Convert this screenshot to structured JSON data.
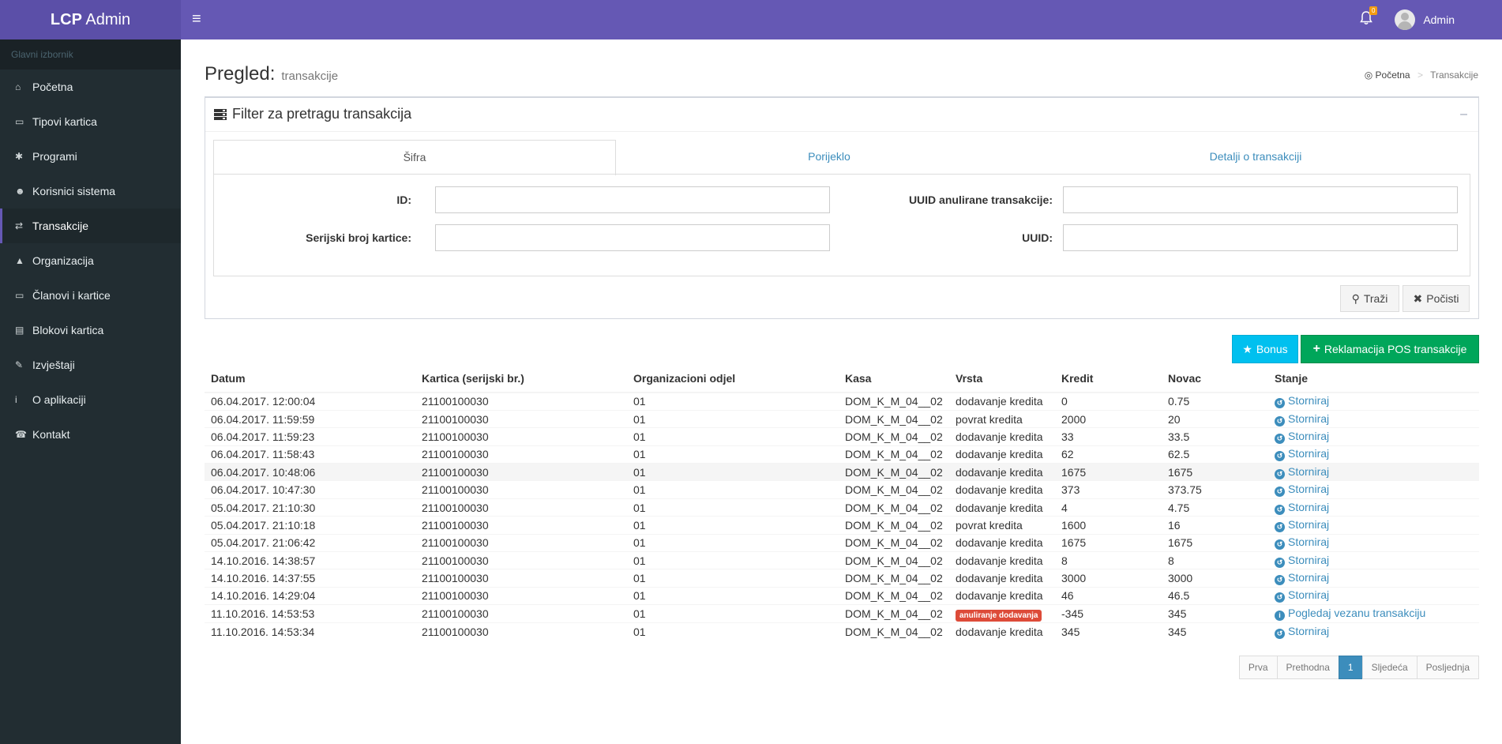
{
  "app": {
    "logo_bold": "LCP",
    "logo_rest": "Admin"
  },
  "header": {
    "menu_icon": "hamburger-icon",
    "notification_count": "0",
    "user_name": "Admin"
  },
  "sidebar": {
    "heading": "Glavni izbornik",
    "items": [
      {
        "label": "Početna",
        "icon": "home-icon"
      },
      {
        "label": "Tipovi kartica",
        "icon": "credit-card-icon"
      },
      {
        "label": "Programi",
        "icon": "asterisk-icon"
      },
      {
        "label": "Korisnici sistema",
        "icon": "user-icon"
      },
      {
        "label": "Transakcije",
        "icon": "exchange-icon",
        "active": true
      },
      {
        "label": "Organizacija",
        "icon": "tree-icon"
      },
      {
        "label": "Članovi i kartice",
        "icon": "credit-card-icon"
      },
      {
        "label": "Blokovi kartica",
        "icon": "book-icon"
      },
      {
        "label": "Izvještaji",
        "icon": "edit-icon"
      },
      {
        "label": "O aplikaciji",
        "icon": "info-icon"
      },
      {
        "label": "Kontakt",
        "icon": "phone-icon"
      }
    ]
  },
  "page": {
    "title": "Pregled:",
    "subtitle": "transakcije",
    "breadcrumb": {
      "home": "Početna",
      "current": "Transakcije"
    }
  },
  "filter": {
    "title": "Filter za pretragu transakcija",
    "tabs": [
      "Šifra",
      "Porijeklo",
      "Detalji o transakciji"
    ],
    "fields": {
      "id_label": "ID:",
      "id_value": "",
      "uuid_cancel_label": "UUID anulirane transakcije:",
      "uuid_cancel_value": "",
      "serial_label": "Serijski broj kartice:",
      "serial_value": "",
      "uuid_label": "UUID:",
      "uuid_value": ""
    },
    "search_label": "Traži",
    "clear_label": "Počisti"
  },
  "actions": {
    "bonus_label": "Bonus",
    "reklamacija_label": "Reklamacija POS transakcije"
  },
  "table": {
    "headers": [
      "Datum",
      "Kartica (serijski br.)",
      "Organizacioni odjel",
      "Kasa",
      "Vrsta",
      "Kredit",
      "Novac",
      "Stanje"
    ],
    "rows": [
      [
        "06.04.2017. 12:00:04",
        "21100100030",
        "01",
        "DOM_K_M_04__02",
        "dodavanje kredita",
        "0",
        "0.75",
        "Storniraj"
      ],
      [
        "06.04.2017. 11:59:59",
        "21100100030",
        "01",
        "DOM_K_M_04__02",
        "povrat kredita",
        "2000",
        "20",
        "Storniraj"
      ],
      [
        "06.04.2017. 11:59:23",
        "21100100030",
        "01",
        "DOM_K_M_04__02",
        "dodavanje kredita",
        "33",
        "33.5",
        "Storniraj"
      ],
      [
        "06.04.2017. 11:58:43",
        "21100100030",
        "01",
        "DOM_K_M_04__02",
        "dodavanje kredita",
        "62",
        "62.5",
        "Storniraj"
      ],
      [
        "06.04.2017. 10:48:06",
        "21100100030",
        "01",
        "DOM_K_M_04__02",
        "dodavanje kredita",
        "1675",
        "1675",
        "Storniraj"
      ],
      [
        "06.04.2017. 10:47:30",
        "21100100030",
        "01",
        "DOM_K_M_04__02",
        "dodavanje kredita",
        "373",
        "373.75",
        "Storniraj"
      ],
      [
        "05.04.2017. 21:10:30",
        "21100100030",
        "01",
        "DOM_K_M_04__02",
        "dodavanje kredita",
        "4",
        "4.75",
        "Storniraj"
      ],
      [
        "05.04.2017. 21:10:18",
        "21100100030",
        "01",
        "DOM_K_M_04__02",
        "povrat kredita",
        "1600",
        "16",
        "Storniraj"
      ],
      [
        "05.04.2017. 21:06:42",
        "21100100030",
        "01",
        "DOM_K_M_04__02",
        "dodavanje kredita",
        "1675",
        "1675",
        "Storniraj"
      ],
      [
        "14.10.2016. 14:38:57",
        "21100100030",
        "01",
        "DOM_K_M_04__02",
        "dodavanje kredita",
        "8",
        "8",
        "Storniraj"
      ],
      [
        "14.10.2016. 14:37:55",
        "21100100030",
        "01",
        "DOM_K_M_04__02",
        "dodavanje kredita",
        "3000",
        "3000",
        "Storniraj"
      ],
      [
        "14.10.2016. 14:29:04",
        "21100100030",
        "01",
        "DOM_K_M_04__02",
        "dodavanje kredita",
        "46",
        "46.5",
        "Storniraj"
      ],
      [
        "11.10.2016. 14:53:53",
        "21100100030",
        "01",
        "DOM_K_M_04__02",
        "anuliranje dodavanja",
        "-345",
        "345",
        "Pogledaj vezanu transakciju"
      ],
      [
        "11.10.2016. 14:53:34",
        "21100100030",
        "01",
        "DOM_K_M_04__02",
        "dodavanje kredita",
        "345",
        "345",
        "Storniraj"
      ]
    ],
    "highlighted_row": 4,
    "badge_row": 12
  },
  "pagination": [
    "Prva",
    "Prethodna",
    "1",
    "Sljedeća",
    "Posljednja"
  ],
  "pagination_active": 2,
  "colors": {
    "header": "#6558b4",
    "logo": "#5b4fa8",
    "sidebar": "#222d32",
    "link": "#3c8dbc",
    "success": "#00a65a",
    "info": "#00c0ef",
    "danger": "#dd4b39"
  }
}
